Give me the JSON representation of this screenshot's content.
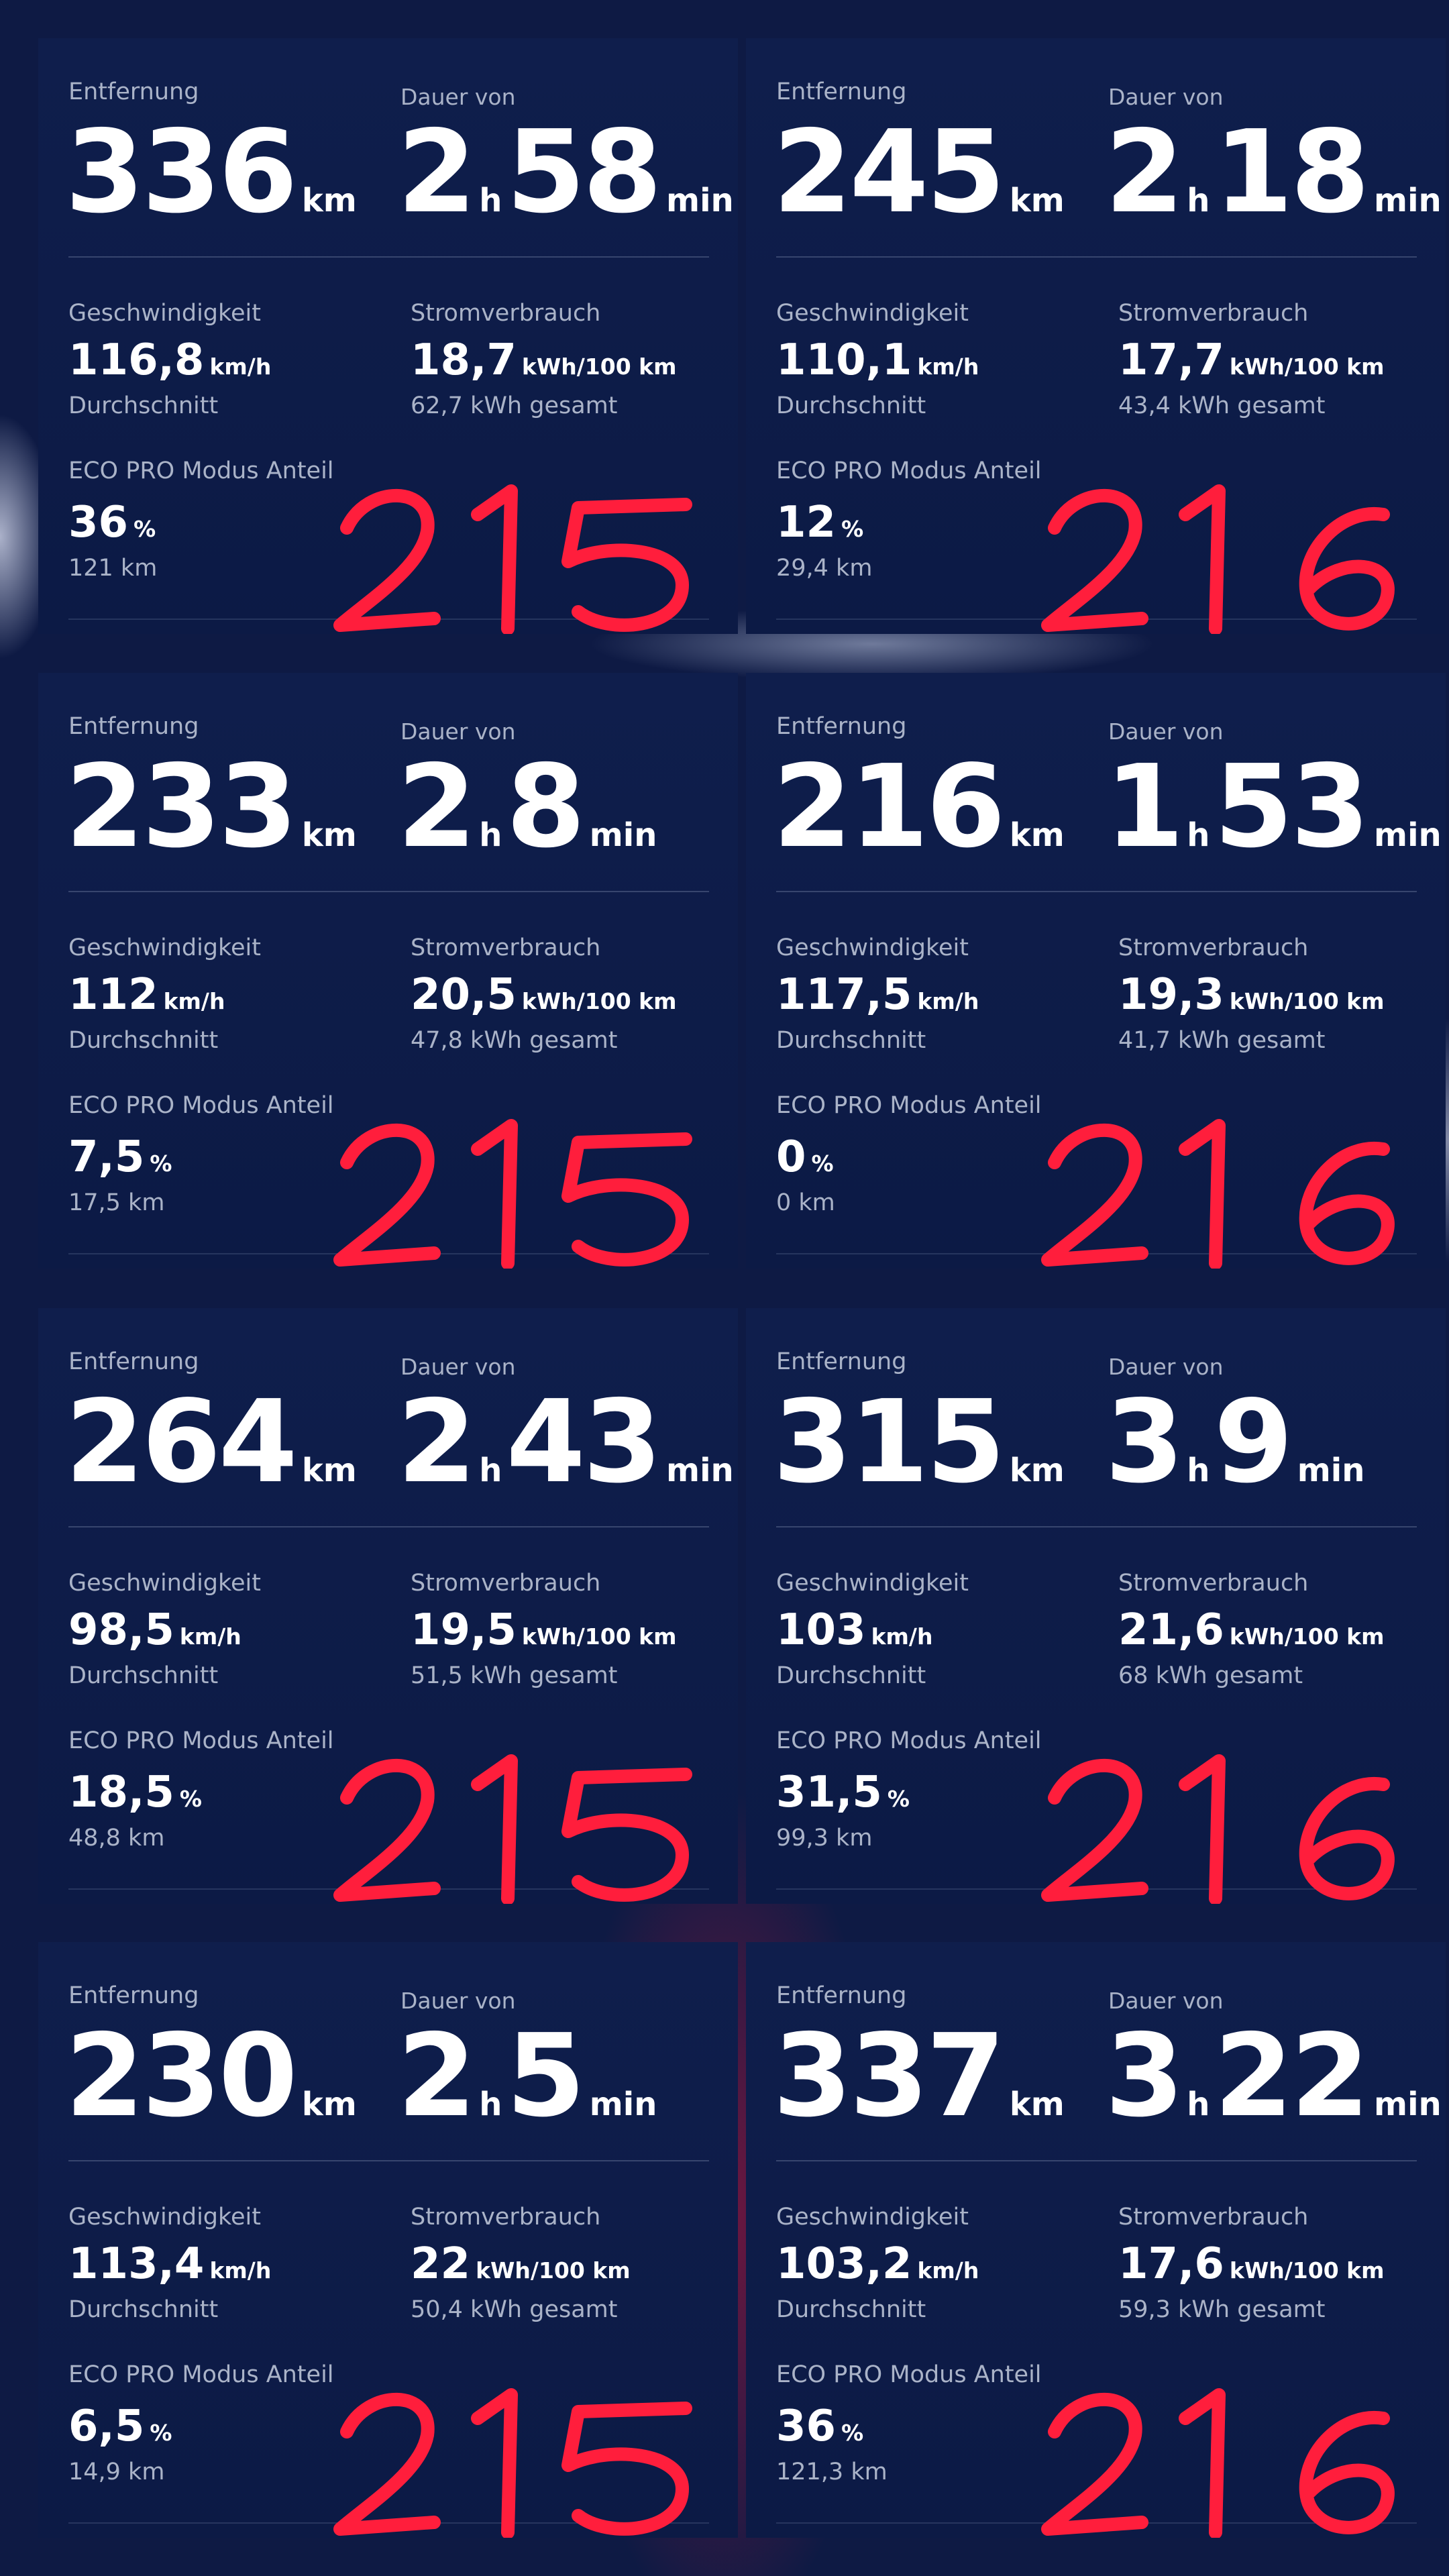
{
  "labels": {
    "distance": "Entfernung",
    "duration": "Dauer von",
    "speed": "Geschwindigkeit",
    "consumption": "Stromverbrauch",
    "eco": "ECO PRO Modus Anteil",
    "average": "Durchschnitt"
  },
  "units": {
    "km": "km",
    "h": "h",
    "min": "min",
    "kmh": "km/h",
    "kwh100": "kWh/100 km",
    "percent": "%"
  },
  "cards": [
    {
      "distance": "336",
      "hours": "2",
      "minutes": "58",
      "speed": "116,8",
      "consumption": "18,7",
      "total": "62,7 kWh gesamt",
      "eco_pct": "36",
      "eco_km": "121 km",
      "annotation": "215"
    },
    {
      "distance": "245",
      "hours": "2",
      "minutes": "18",
      "speed": "110,1",
      "consumption": "17,7",
      "total": "43,4 kWh gesamt",
      "eco_pct": "12",
      "eco_km": "29,4 km",
      "annotation": "216"
    },
    {
      "distance": "233",
      "hours": "2",
      "minutes": "8",
      "speed": "112",
      "consumption": "20,5",
      "total": "47,8 kWh gesamt",
      "eco_pct": "7,5",
      "eco_km": "17,5 km",
      "annotation": "215"
    },
    {
      "distance": "216",
      "hours": "1",
      "minutes": "53",
      "speed": "117,5",
      "consumption": "19,3",
      "total": "41,7 kWh gesamt",
      "eco_pct": "0",
      "eco_km": "0 km",
      "annotation": "216"
    },
    {
      "distance": "264",
      "hours": "2",
      "minutes": "43",
      "speed": "98,5",
      "consumption": "19,5",
      "total": "51,5 kWh gesamt",
      "eco_pct": "18,5",
      "eco_km": "48,8 km",
      "annotation": "215"
    },
    {
      "distance": "315",
      "hours": "3",
      "minutes": "9",
      "speed": "103",
      "consumption": "21,6",
      "total": "68 kWh gesamt",
      "eco_pct": "31,5",
      "eco_km": "99,3 km",
      "annotation": "216"
    },
    {
      "distance": "230",
      "hours": "2",
      "minutes": "5",
      "speed": "113,4",
      "consumption": "22",
      "total": "50,4 kWh gesamt",
      "eco_pct": "6,5",
      "eco_km": "14,9 km",
      "annotation": "215"
    },
    {
      "distance": "337",
      "hours": "3",
      "minutes": "22",
      "speed": "103,2",
      "consumption": "17,6",
      "total": "59,3 kWh gesamt",
      "eco_pct": "36",
      "eco_km": "121,3 km",
      "annotation": "216"
    }
  ],
  "colors": {
    "background": "#0e1a44",
    "card": "#0f1e4c",
    "label": "#aab3c8",
    "value": "#ffffff",
    "annotation": "#ff1e3c"
  }
}
